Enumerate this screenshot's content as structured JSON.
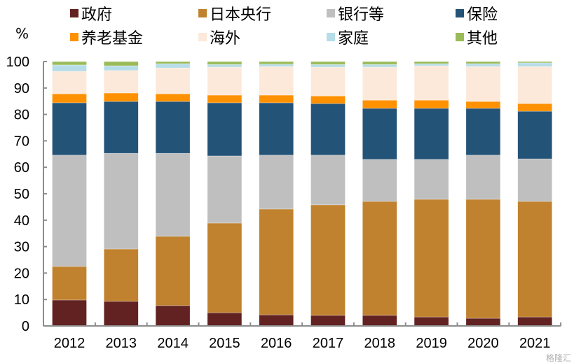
{
  "chart_data": {
    "type": "bar",
    "stacked": true,
    "title": "",
    "ylabel": "%",
    "xlabel": "",
    "ylim": [
      0,
      100
    ],
    "yticks": [
      0,
      10,
      20,
      30,
      40,
      50,
      60,
      70,
      80,
      90,
      100
    ],
    "grid": false,
    "legend_position": "top",
    "categories": [
      "2012",
      "2013",
      "2014",
      "2015",
      "2016",
      "2017",
      "2018",
      "2019",
      "2020",
      "2021"
    ],
    "series": [
      {
        "name": "政府",
        "color": "#622222",
        "values": [
          9.8,
          9.3,
          7.7,
          5.0,
          4.2,
          4.0,
          4.0,
          3.4,
          2.9,
          3.4
        ]
      },
      {
        "name": "日本央行",
        "color": "#C0822E",
        "values": [
          12.7,
          19.8,
          26.2,
          33.9,
          40.0,
          41.8,
          43.1,
          44.5,
          45.0,
          43.7
        ]
      },
      {
        "name": "银行等",
        "color": "#BFBFBF",
        "values": [
          42.1,
          36.2,
          31.4,
          25.4,
          20.4,
          18.8,
          15.9,
          15.1,
          16.7,
          16.1
        ]
      },
      {
        "name": "保险",
        "color": "#245378",
        "values": [
          19.8,
          19.6,
          19.6,
          20.1,
          19.8,
          19.5,
          19.3,
          19.3,
          17.7,
          18.0
        ]
      },
      {
        "name": "养老基金",
        "color": "#FF9100",
        "values": [
          3.4,
          3.2,
          2.9,
          2.9,
          2.9,
          2.9,
          3.1,
          3.1,
          2.6,
          2.9
        ]
      },
      {
        "name": "海外",
        "color": "#FDE9DA",
        "values": [
          8.5,
          8.5,
          9.8,
          10.6,
          10.8,
          10.9,
          12.5,
          13.0,
          13.2,
          14.0
        ]
      },
      {
        "name": "家庭",
        "color": "#B7DDE8",
        "values": [
          2.4,
          1.8,
          1.6,
          1.0,
          0.9,
          1.0,
          1.0,
          0.8,
          1.1,
          1.4
        ]
      },
      {
        "name": "其他",
        "color": "#9BBB59",
        "values": [
          1.3,
          1.6,
          0.8,
          1.1,
          1.0,
          1.1,
          1.1,
          0.8,
          0.8,
          0.5
        ]
      }
    ]
  },
  "legend": {
    "items": [
      "政府",
      "日本央行",
      "银行等",
      "保险",
      "养老基金",
      "海外",
      "家庭",
      "其他"
    ]
  },
  "watermark": "格隆汇"
}
